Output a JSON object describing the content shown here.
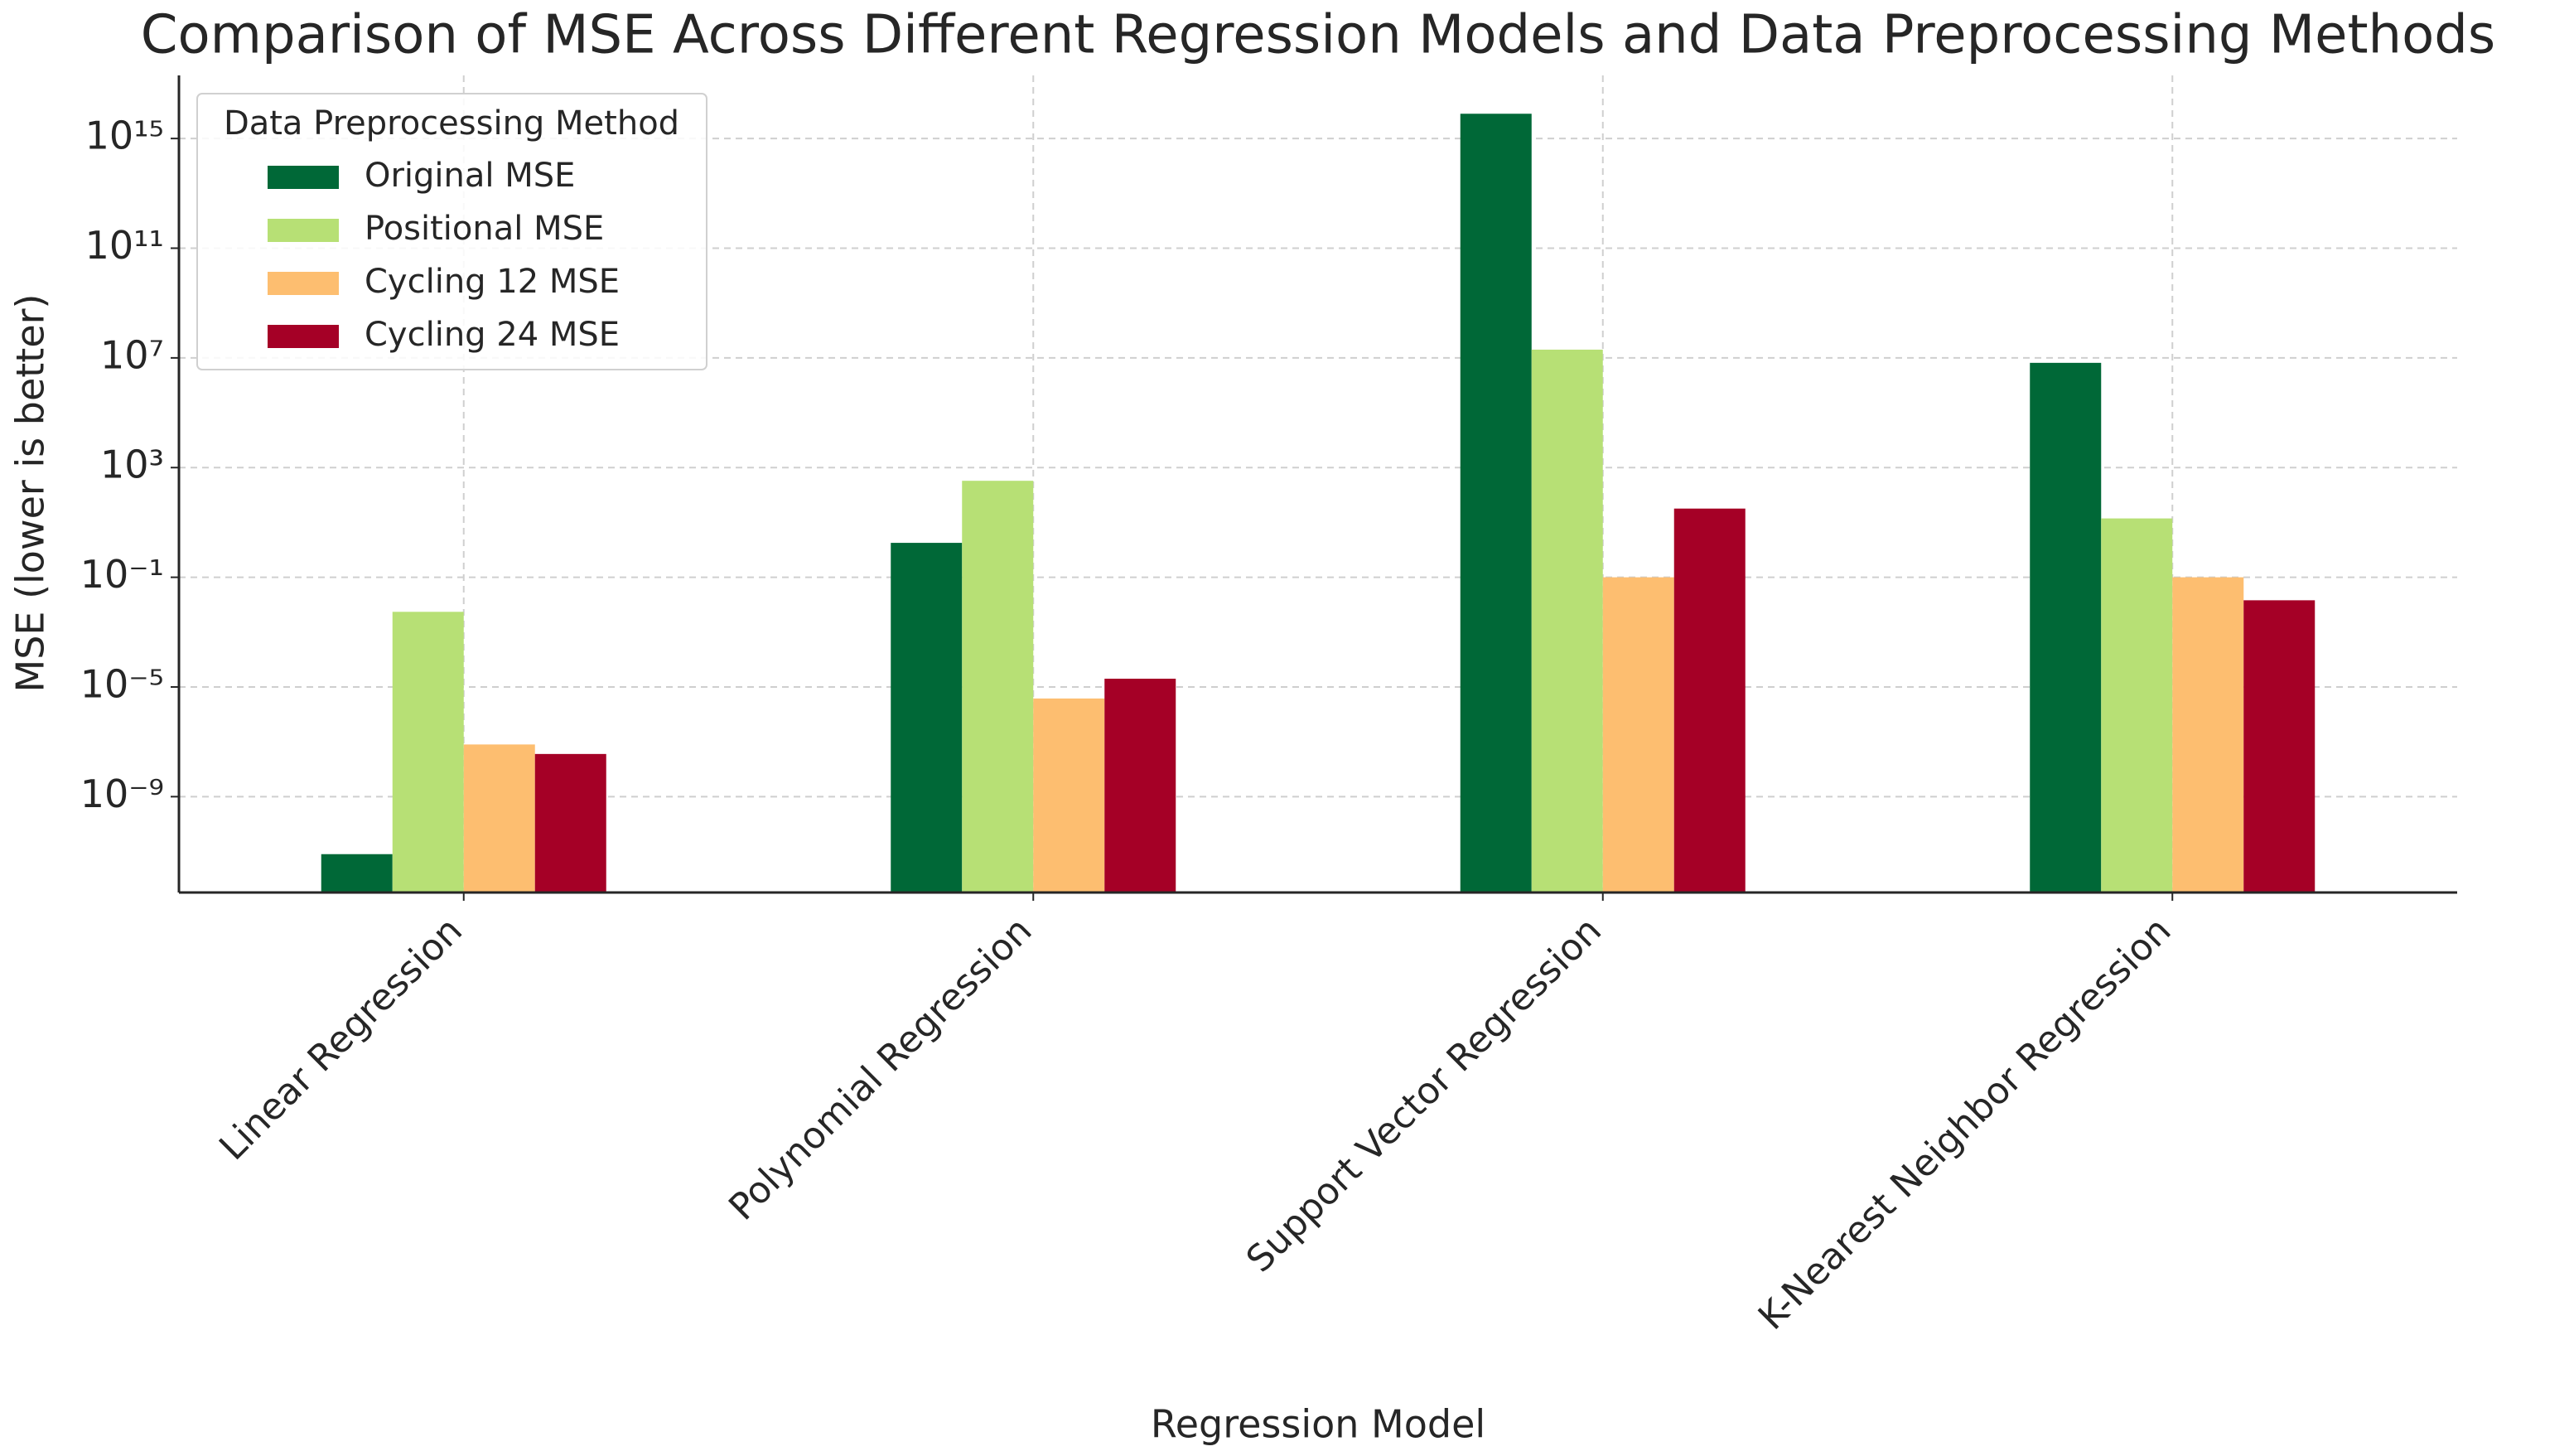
{
  "chart_data": {
    "type": "bar",
    "title": "Comparison of MSE Across Different Regression Models and Data Preprocessing Methods",
    "x_label": "Regression Model",
    "y_label": "MSE (lower is better)",
    "log_scale": true,
    "grid": true,
    "legend_title": "Data Preprocessing Method",
    "legend_position": "upper-left",
    "categories": [
      "Linear Regression",
      "Polynomial Regression",
      "Support Vector Regression",
      "K-Nearest Neighbor Regression"
    ],
    "series": [
      {
        "name": "Original MSE",
        "color": "#006837",
        "values": [
          8e-12,
          1.8,
          8000000000000000.0,
          6600000.0
        ]
      },
      {
        "name": "Positional MSE",
        "color": "#b7e075",
        "values": [
          0.0055,
          330,
          20000000.0,
          14
        ]
      },
      {
        "name": "Cycling 12 MSE",
        "color": "#fdbe70",
        "values": [
          8e-08,
          3.8e-06,
          0.1,
          0.1
        ]
      },
      {
        "name": "Cycling 24 MSE",
        "color": "#a50026",
        "values": [
          3.6e-08,
          2e-05,
          32,
          0.0145
        ]
      }
    ],
    "ylim": [
      3.2e-13,
      2e+17
    ],
    "yticks": [
      {
        "value": 1e-09,
        "label": "10⁻⁹"
      },
      {
        "value": 1e-05,
        "label": "10⁻⁵"
      },
      {
        "value": 0.1,
        "label": "10⁻¹"
      },
      {
        "value": 1000,
        "label": "10³"
      },
      {
        "value": 10000000.0,
        "label": "10⁷"
      },
      {
        "value": 100000000000.0,
        "label": "10¹¹"
      },
      {
        "value": 1000000000000000.0,
        "label": "10¹⁵"
      }
    ]
  }
}
